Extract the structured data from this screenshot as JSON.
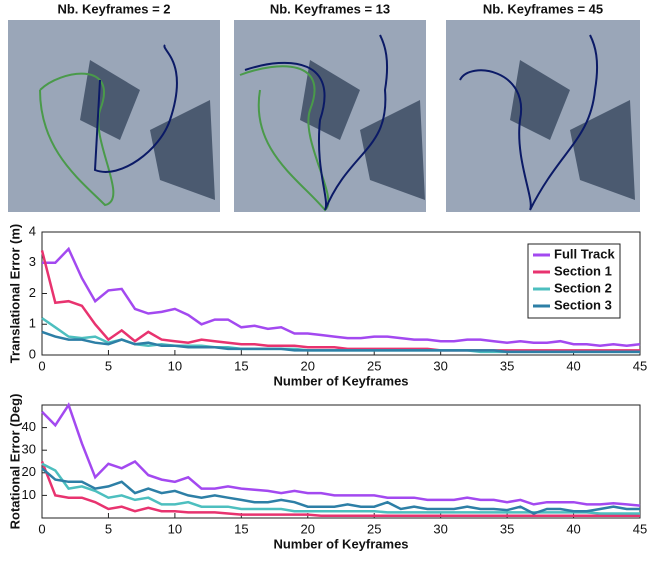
{
  "panels": [
    {
      "title": "Nb. Keyframes = 2"
    },
    {
      "title": "Nb. Keyframes = 13"
    },
    {
      "title": "Nb. Keyframes = 45"
    }
  ],
  "chart_data": [
    {
      "type": "line",
      "ylabel": "Translational Error (m)",
      "xlabel": "Number of Keyframes",
      "x": [
        0,
        1,
        2,
        3,
        4,
        5,
        6,
        7,
        8,
        9,
        10,
        11,
        12,
        13,
        14,
        15,
        16,
        17,
        18,
        19,
        20,
        21,
        22,
        23,
        24,
        25,
        26,
        27,
        28,
        29,
        30,
        31,
        32,
        33,
        34,
        35,
        36,
        37,
        38,
        39,
        40,
        41,
        42,
        43,
        44,
        45
      ],
      "xlim": [
        0,
        45
      ],
      "xticks": [
        0,
        5,
        10,
        15,
        20,
        25,
        30,
        35,
        40,
        45
      ],
      "ylim": [
        0,
        4
      ],
      "yticks": [
        0,
        1,
        2,
        3,
        4
      ],
      "legend": "upper right",
      "series": [
        {
          "name": "Full Track",
          "color": "#a349f0",
          "values": [
            3.0,
            3.0,
            3.45,
            2.5,
            1.75,
            2.1,
            2.15,
            1.5,
            1.35,
            1.4,
            1.5,
            1.3,
            1.0,
            1.15,
            1.15,
            0.9,
            0.95,
            0.85,
            0.9,
            0.7,
            0.7,
            0.65,
            0.6,
            0.55,
            0.55,
            0.6,
            0.6,
            0.55,
            0.5,
            0.5,
            0.45,
            0.45,
            0.5,
            0.5,
            0.45,
            0.4,
            0.45,
            0.4,
            0.4,
            0.45,
            0.35,
            0.35,
            0.3,
            0.35,
            0.3,
            0.35
          ]
        },
        {
          "name": "Section 1",
          "color": "#e8336f",
          "values": [
            3.4,
            1.7,
            1.75,
            1.6,
            1.0,
            0.5,
            0.8,
            0.45,
            0.75,
            0.5,
            0.45,
            0.4,
            0.5,
            0.45,
            0.4,
            0.35,
            0.35,
            0.3,
            0.3,
            0.3,
            0.25,
            0.25,
            0.25,
            0.2,
            0.2,
            0.2,
            0.2,
            0.2,
            0.2,
            0.2,
            0.15,
            0.15,
            0.15,
            0.15,
            0.15,
            0.15,
            0.15,
            0.15,
            0.15,
            0.15,
            0.15,
            0.15,
            0.15,
            0.15,
            0.15,
            0.15
          ]
        },
        {
          "name": "Section 2",
          "color": "#4dbfbf",
          "values": [
            1.2,
            0.9,
            0.6,
            0.55,
            0.6,
            0.4,
            0.5,
            0.35,
            0.3,
            0.35,
            0.3,
            0.3,
            0.3,
            0.25,
            0.25,
            0.2,
            0.2,
            0.2,
            0.2,
            0.2,
            0.15,
            0.15,
            0.15,
            0.15,
            0.15,
            0.15,
            0.15,
            0.15,
            0.15,
            0.15,
            0.15,
            0.15,
            0.15,
            0.1,
            0.1,
            0.1,
            0.1,
            0.1,
            0.1,
            0.1,
            0.1,
            0.1,
            0.1,
            0.1,
            0.1,
            0.1
          ]
        },
        {
          "name": "Section 3",
          "color": "#2d7fa6",
          "values": [
            0.75,
            0.6,
            0.5,
            0.5,
            0.4,
            0.35,
            0.5,
            0.35,
            0.4,
            0.3,
            0.3,
            0.25,
            0.25,
            0.25,
            0.2,
            0.2,
            0.2,
            0.2,
            0.2,
            0.15,
            0.15,
            0.15,
            0.15,
            0.15,
            0.15,
            0.15,
            0.15,
            0.15,
            0.15,
            0.15,
            0.15,
            0.15,
            0.15,
            0.15,
            0.15,
            0.1,
            0.1,
            0.1,
            0.1,
            0.1,
            0.1,
            0.1,
            0.1,
            0.1,
            0.1,
            0.1
          ]
        }
      ]
    },
    {
      "type": "line",
      "ylabel": "Rotational Error (Deg)",
      "xlabel": "Number of Keyframes",
      "x": [
        0,
        1,
        2,
        3,
        4,
        5,
        6,
        7,
        8,
        9,
        10,
        11,
        12,
        13,
        14,
        15,
        16,
        17,
        18,
        19,
        20,
        21,
        22,
        23,
        24,
        25,
        26,
        27,
        28,
        29,
        30,
        31,
        32,
        33,
        34,
        35,
        36,
        37,
        38,
        39,
        40,
        41,
        42,
        43,
        44,
        45
      ],
      "xlim": [
        0,
        45
      ],
      "xticks": [
        0,
        5,
        10,
        15,
        20,
        25,
        30,
        35,
        40,
        45
      ],
      "ylim": [
        0,
        50
      ],
      "yticks": [
        10,
        20,
        30,
        40
      ],
      "series": [
        {
          "color": "#a349f0",
          "values": [
            47,
            41,
            50,
            33,
            18,
            24,
            22,
            25,
            19,
            17,
            16,
            18,
            13,
            13,
            14,
            13,
            12.5,
            12,
            11,
            12,
            11,
            11,
            10,
            10,
            10,
            10,
            9,
            9,
            9,
            8,
            8,
            8,
            9,
            8,
            8,
            7,
            8,
            6,
            7,
            7,
            7,
            6,
            6,
            6.5,
            6,
            5.5
          ]
        },
        {
          "color": "#e8336f",
          "values": [
            25,
            10,
            9,
            9,
            7,
            4,
            5,
            3,
            4.5,
            3,
            3,
            2.5,
            2.5,
            2.5,
            2,
            1.5,
            1.5,
            1.5,
            1.5,
            1.5,
            1.5,
            1,
            1,
            1,
            1,
            1,
            1,
            1,
            1,
            1,
            1,
            1,
            1,
            1,
            1,
            1,
            1,
            1,
            1,
            1,
            1,
            1,
            1,
            1,
            1,
            1
          ]
        },
        {
          "color": "#4dbfbf",
          "values": [
            24,
            21,
            13,
            14,
            12,
            9,
            10,
            8,
            9,
            6,
            6,
            7,
            5,
            5,
            5,
            4,
            4,
            4,
            4,
            3,
            3,
            3,
            3,
            3,
            3,
            3,
            2.5,
            2.5,
            2.5,
            2.5,
            2.5,
            2.5,
            2.5,
            2.5,
            2.5,
            2.5,
            2.5,
            2.5,
            2.5,
            2.5,
            2.5,
            2.5,
            2,
            2,
            2,
            2
          ]
        },
        {
          "color": "#2d7fa6",
          "values": [
            22,
            17,
            16,
            16,
            13,
            14,
            16,
            11,
            13,
            11,
            12,
            10,
            9,
            10,
            9,
            8,
            7,
            7,
            8,
            7,
            5,
            5,
            5,
            6,
            5,
            5,
            7,
            4,
            5,
            4,
            4,
            4,
            5,
            4,
            4,
            3.5,
            5,
            2,
            4,
            4,
            3,
            3,
            4,
            5,
            4,
            4
          ]
        }
      ]
    }
  ]
}
